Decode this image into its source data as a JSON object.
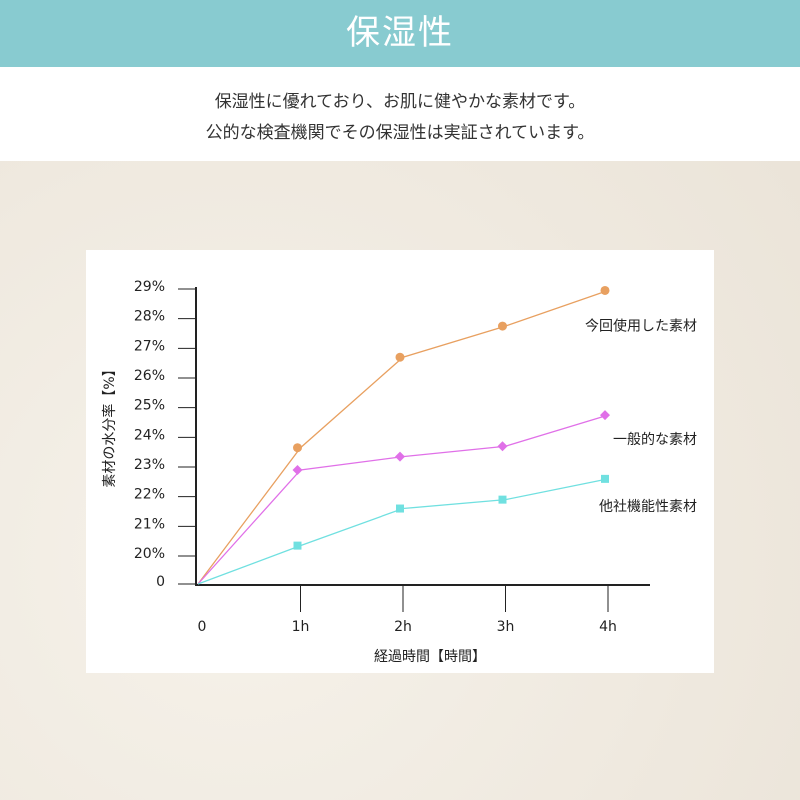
{
  "header": {
    "title": "保湿性",
    "lines": [
      "保湿性に優れており、お肌に健やかな素材です。",
      "公的な検査機関でその保湿性は実証されています。"
    ]
  },
  "chart_data": {
    "type": "line",
    "xlabel": "経過時間【時間】",
    "ylabel": "素材の水分率【%】",
    "categories": [
      "0",
      "1h",
      "2h",
      "3h",
      "4h"
    ],
    "series": [
      {
        "name": "今回使用した素材",
        "color": "#e8a060",
        "marker": "circle",
        "values": [
          0,
          23.65,
          26.7,
          27.75,
          28.95
        ]
      },
      {
        "name": "一般的な素材",
        "color": "#e070e8",
        "marker": "diamond",
        "values": [
          0,
          22.9,
          23.35,
          23.7,
          24.75
        ]
      },
      {
        "name": "他社機能性素材",
        "color": "#70e0e0",
        "marker": "square",
        "values": [
          0,
          20.35,
          21.6,
          21.9,
          22.6
        ]
      }
    ],
    "ylim": [
      0,
      29
    ],
    "yticks": [
      {
        "value": 0,
        "label": "0"
      },
      {
        "value": 20,
        "label": "20%"
      },
      {
        "value": 21,
        "label": "21%"
      },
      {
        "value": 22,
        "label": "22%"
      },
      {
        "value": 23,
        "label": "23%"
      },
      {
        "value": 24,
        "label": "24%"
      },
      {
        "value": 25,
        "label": "25%"
      },
      {
        "value": 26,
        "label": "26%"
      },
      {
        "value": 27,
        "label": "27%"
      },
      {
        "value": 28,
        "label": "28%"
      },
      {
        "value": 29,
        "label": "29%"
      }
    ]
  }
}
